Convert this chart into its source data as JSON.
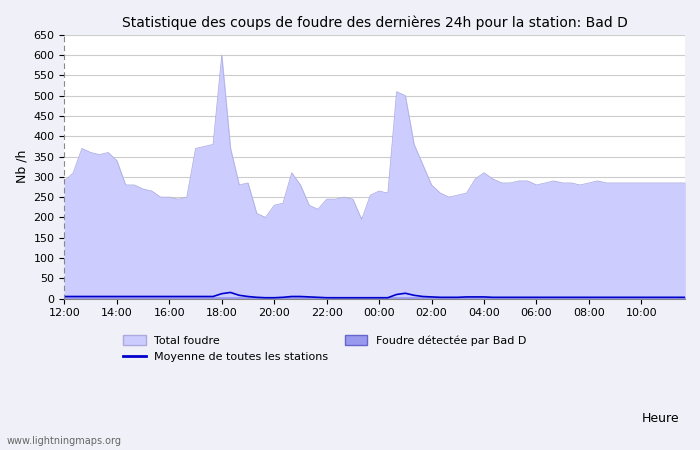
{
  "title": "Statistique des coups de foudre des dernières 24h pour la station: Bad D",
  "ylabel": "Nb /h",
  "xlabel_right": "Heure",
  "watermark": "www.lightningmaps.org",
  "ylim": [
    0,
    650
  ],
  "yticks": [
    0,
    50,
    100,
    150,
    200,
    250,
    300,
    350,
    400,
    450,
    500,
    550,
    600,
    650
  ],
  "xtick_labels": [
    "12:00",
    "14:00",
    "16:00",
    "18:00",
    "20:00",
    "22:00",
    "00:00",
    "02:00",
    "04:00",
    "06:00",
    "08:00",
    "10:00",
    "12:00"
  ],
  "bg_color": "#f0f0f8",
  "plot_bg_color": "#ffffff",
  "total_foudre_color": "#ccccff",
  "total_foudre_edge_color": "#aaaadd",
  "foudre_detected_color": "#9999ee",
  "foudre_detected_edge_color": "#6666cc",
  "moyenne_color": "#0000cc",
  "legend_labels": [
    "Total foudre",
    "Moyenne de toutes les stations",
    "Foudre détectée par Bad D"
  ],
  "total_foudre": [
    290,
    310,
    370,
    360,
    355,
    360,
    340,
    280,
    280,
    270,
    265,
    250,
    250,
    245,
    250,
    370,
    375,
    380,
    600,
    370,
    280,
    285,
    210,
    200,
    230,
    235,
    310,
    280,
    230,
    220,
    245,
    245,
    250,
    245,
    195,
    255,
    265,
    260,
    510,
    500,
    380,
    330,
    280,
    260,
    250,
    255,
    260,
    295,
    310,
    295,
    285,
    285,
    290,
    290,
    280,
    285,
    290,
    285,
    285,
    280,
    285,
    290,
    285,
    285,
    285,
    285,
    285,
    285,
    285,
    285,
    285,
    285
  ],
  "foudre_detected": [
    5,
    5,
    5,
    5,
    5,
    5,
    5,
    5,
    5,
    5,
    5,
    5,
    5,
    5,
    5,
    5,
    5,
    5,
    5,
    5,
    5,
    5,
    5,
    5,
    5,
    5,
    5,
    5,
    5,
    5,
    5,
    5,
    5,
    5,
    5,
    5,
    5,
    5,
    5,
    5,
    5,
    5,
    5,
    5,
    5,
    5,
    5,
    5,
    5,
    5,
    5,
    5,
    5,
    5,
    5,
    5,
    5,
    5,
    5,
    5,
    5,
    5,
    5,
    5,
    5,
    5,
    5,
    5,
    5,
    5,
    5,
    5
  ],
  "moyenne": [
    5,
    5,
    5,
    5,
    5,
    5,
    5,
    5,
    5,
    5,
    5,
    5,
    5,
    5,
    5,
    5,
    5,
    5,
    12,
    15,
    8,
    5,
    3,
    2,
    2,
    3,
    5,
    5,
    4,
    3,
    2,
    2,
    2,
    2,
    2,
    2,
    2,
    2,
    10,
    13,
    8,
    5,
    4,
    3,
    3,
    3,
    4,
    4,
    4,
    3,
    3,
    3,
    3,
    3,
    3,
    3,
    3,
    3,
    3,
    3,
    3,
    3,
    3,
    3,
    3,
    3,
    3,
    3,
    3,
    3,
    3,
    3
  ]
}
